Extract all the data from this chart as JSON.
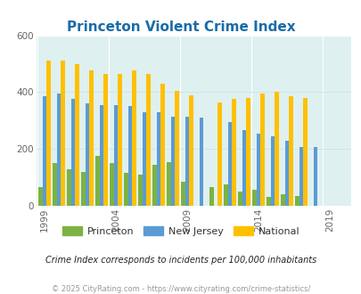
{
  "title": "Princeton Violent Crime Index",
  "years": [
    1999,
    2000,
    2001,
    2002,
    2003,
    2004,
    2005,
    2006,
    2007,
    2008,
    2009,
    2010,
    2011,
    2012,
    2013,
    2014,
    2015,
    2016,
    2017,
    2018,
    2019,
    2020
  ],
  "princeton": [
    65,
    150,
    130,
    120,
    175,
    150,
    115,
    110,
    145,
    155,
    85,
    0,
    65,
    75,
    50,
    55,
    30,
    40,
    35,
    0,
    0,
    0
  ],
  "new_jersey": [
    385,
    395,
    375,
    360,
    355,
    355,
    350,
    330,
    330,
    315,
    315,
    310,
    0,
    295,
    265,
    255,
    245,
    230,
    208,
    208,
    0,
    0
  ],
  "national": [
    510,
    510,
    500,
    475,
    465,
    465,
    475,
    465,
    430,
    405,
    390,
    0,
    365,
    375,
    380,
    395,
    400,
    385,
    380,
    0,
    0,
    0
  ],
  "princeton_color": "#7cb342",
  "new_jersey_color": "#5b9bd5",
  "national_color": "#ffc000",
  "bg_color": "#dff0f0",
  "ylim": [
    0,
    600
  ],
  "yticks": [
    0,
    200,
    400,
    600
  ],
  "subtitle": "Crime Index corresponds to incidents per 100,000 inhabitants",
  "footer": "© 2025 CityRating.com - https://www.cityrating.com/crime-statistics/",
  "bar_width": 0.28,
  "tick_years": [
    1999,
    2004,
    2009,
    2014,
    2019
  ],
  "legend_labels": [
    "Princeton",
    "New Jersey",
    "National"
  ]
}
